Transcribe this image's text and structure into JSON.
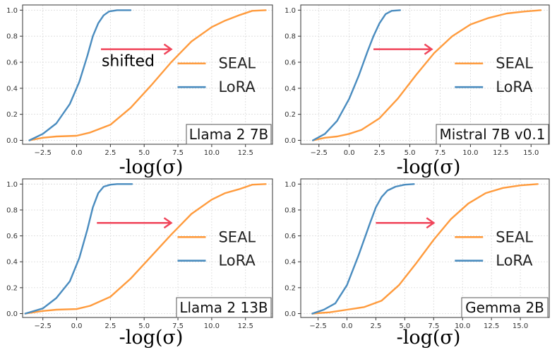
{
  "chart_data": [
    {
      "type": "line",
      "title": "Llama 2 7B",
      "xlabel": "-log(σ)",
      "ylabel": "",
      "xlim": [
        -4,
        14.5
      ],
      "ylim": [
        -0.03,
        1.04
      ],
      "xticks": [
        -2.5,
        0.0,
        2.5,
        5.0,
        7.5,
        10.0,
        12.5
      ],
      "xtick_labels": [
        "−2.5",
        "0.0",
        "2.5",
        "5.0",
        "7.5",
        "10.0",
        "12.5"
      ],
      "yticks": [
        0.0,
        0.2,
        0.4,
        0.6,
        0.8,
        1.0
      ],
      "ytick_labels": [
        "0.0",
        "0.2",
        "0.4",
        "0.6",
        "0.8",
        "1.0"
      ],
      "grid": true,
      "legend_position": "right",
      "annotation": {
        "text": "shifted",
        "arrow_from": [
          1.8,
          0.7
        ],
        "arrow_to": [
          7.0,
          0.7
        ]
      },
      "series": [
        {
          "name": "SEAL",
          "color": "#ff9b3d",
          "x": [
            -3.5,
            -2.5,
            -1.5,
            0.0,
            1.0,
            2.5,
            4.0,
            5.5,
            7.0,
            8.5,
            10.0,
            11.0,
            12.0,
            13.0,
            14.0
          ],
          "y": [
            0.0,
            0.02,
            0.03,
            0.035,
            0.06,
            0.12,
            0.25,
            0.42,
            0.6,
            0.76,
            0.87,
            0.92,
            0.96,
            0.995,
            1.0
          ]
        },
        {
          "name": "LoRA",
          "color": "#4a8cbf",
          "x": [
            -3.5,
            -2.5,
            -1.5,
            -0.5,
            0.2,
            0.8,
            1.2,
            1.6,
            2.0,
            2.4,
            3.0,
            3.5,
            4.0
          ],
          "y": [
            0.0,
            0.05,
            0.13,
            0.28,
            0.45,
            0.65,
            0.8,
            0.9,
            0.96,
            0.99,
            1.0,
            1.0,
            1.0
          ]
        }
      ]
    },
    {
      "type": "line",
      "title": "Mistral 7B v0.1",
      "xlabel": "-log(σ)",
      "ylabel": "",
      "xlim": [
        -4,
        16.5
      ],
      "ylim": [
        -0.03,
        1.04
      ],
      "xticks": [
        -2.5,
        0.0,
        2.5,
        5.0,
        7.5,
        10.0,
        12.5,
        15.0
      ],
      "xtick_labels": [
        "−2.5",
        "0.0",
        "2.5",
        "5.0",
        "7.5",
        "10.0",
        "12.5",
        "15.0"
      ],
      "yticks": [
        0.0,
        0.2,
        0.4,
        0.6,
        0.8,
        1.0
      ],
      "ytick_labels": [
        "0.0",
        "0.2",
        "0.4",
        "0.6",
        "0.8",
        "1.0"
      ],
      "grid": true,
      "legend_position": "right",
      "annotation": {
        "text": "",
        "arrow_from": [
          2.0,
          0.7
        ],
        "arrow_to": [
          6.8,
          0.7
        ]
      },
      "series": [
        {
          "name": "SEAL",
          "color": "#ff9b3d",
          "x": [
            -3.0,
            -2.0,
            -1.0,
            0.0,
            1.0,
            2.5,
            4.0,
            5.5,
            7.0,
            8.5,
            10.0,
            11.5,
            13.0,
            14.5,
            15.8
          ],
          "y": [
            0.0,
            0.02,
            0.03,
            0.05,
            0.08,
            0.17,
            0.32,
            0.5,
            0.67,
            0.8,
            0.89,
            0.94,
            0.975,
            0.99,
            1.0
          ]
        },
        {
          "name": "LoRA",
          "color": "#4a8cbf",
          "x": [
            -3.0,
            -2.0,
            -1.0,
            0.0,
            0.8,
            1.5,
            2.0,
            2.5,
            3.0,
            3.5,
            4.2
          ],
          "y": [
            0.0,
            0.05,
            0.15,
            0.32,
            0.5,
            0.68,
            0.8,
            0.9,
            0.97,
            0.995,
            1.0
          ]
        }
      ]
    },
    {
      "type": "line",
      "title": "Llama 2 13B",
      "xlabel": "-log(σ)",
      "ylabel": "",
      "xlim": [
        -4,
        14.5
      ],
      "ylim": [
        -0.03,
        1.04
      ],
      "xticks": [
        -2.5,
        0.0,
        2.5,
        5.0,
        7.5,
        10.0,
        12.5
      ],
      "xtick_labels": [
        "−2.5",
        "0.0",
        "2.5",
        "5.0",
        "7.5",
        "10.0",
        "12.5"
      ],
      "yticks": [
        0.0,
        0.2,
        0.4,
        0.6,
        0.8,
        1.0
      ],
      "ytick_labels": [
        "0.0",
        "0.2",
        "0.4",
        "0.6",
        "0.8",
        "1.0"
      ],
      "grid": true,
      "legend_position": "right",
      "annotation": {
        "text": "",
        "arrow_from": [
          1.5,
          0.7
        ],
        "arrow_to": [
          7.0,
          0.7
        ]
      },
      "series": [
        {
          "name": "SEAL",
          "color": "#ff9b3d",
          "x": [
            -3.8,
            -2.5,
            -1.5,
            0.0,
            1.0,
            2.5,
            4.0,
            5.5,
            7.0,
            8.5,
            10.0,
            11.0,
            12.0,
            13.0,
            14.0
          ],
          "y": [
            0.0,
            0.02,
            0.03,
            0.035,
            0.06,
            0.13,
            0.27,
            0.44,
            0.61,
            0.77,
            0.88,
            0.93,
            0.96,
            0.995,
            1.0
          ]
        },
        {
          "name": "LoRA",
          "color": "#4a8cbf",
          "x": [
            -3.8,
            -2.5,
            -1.5,
            -0.5,
            0.2,
            0.8,
            1.2,
            1.6,
            2.0,
            2.5,
            3.0,
            3.5,
            4.1
          ],
          "y": [
            0.0,
            0.04,
            0.12,
            0.25,
            0.43,
            0.65,
            0.82,
            0.93,
            0.98,
            0.995,
            1.0,
            1.0,
            1.0
          ]
        }
      ]
    },
    {
      "type": "line",
      "title": "Gemma 2B",
      "xlabel": "-log(σ)",
      "ylabel": "",
      "xlim": [
        -4,
        17.5
      ],
      "ylim": [
        -0.03,
        1.04
      ],
      "xticks": [
        -2.5,
        0.0,
        2.5,
        5.0,
        7.5,
        10.0,
        12.5,
        15.0
      ],
      "xtick_labels": [
        "−2.5",
        "0.0",
        "2.5",
        "5.0",
        "7.5",
        "10.0",
        "12.5",
        "15.0"
      ],
      "yticks": [
        0.0,
        0.2,
        0.4,
        0.6,
        0.8,
        1.0
      ],
      "ytick_labels": [
        "0.0",
        "0.2",
        "0.4",
        "0.6",
        "0.8",
        "1.0"
      ],
      "grid": true,
      "legend_position": "right",
      "annotation": {
        "text": "",
        "arrow_from": [
          2.5,
          0.7
        ],
        "arrow_to": [
          7.5,
          0.7
        ]
      },
      "series": [
        {
          "name": "SEAL",
          "color": "#ff9b3d",
          "x": [
            -3.0,
            -1.5,
            0.0,
            1.5,
            3.0,
            4.5,
            6.0,
            7.5,
            9.0,
            10.5,
            12.0,
            13.5,
            15.0,
            16.5
          ],
          "y": [
            0.0,
            0.01,
            0.03,
            0.05,
            0.1,
            0.22,
            0.39,
            0.57,
            0.73,
            0.85,
            0.93,
            0.97,
            0.99,
            1.0
          ]
        },
        {
          "name": "LoRA",
          "color": "#4a8cbf",
          "x": [
            -3.0,
            -2.0,
            -1.0,
            0.0,
            1.0,
            2.0,
            2.5,
            3.0,
            3.5,
            4.2,
            5.0,
            5.8
          ],
          "y": [
            0.0,
            0.03,
            0.08,
            0.22,
            0.45,
            0.7,
            0.82,
            0.9,
            0.95,
            0.98,
            0.995,
            1.0
          ]
        }
      ]
    }
  ],
  "arrow_color": "#f0455a"
}
